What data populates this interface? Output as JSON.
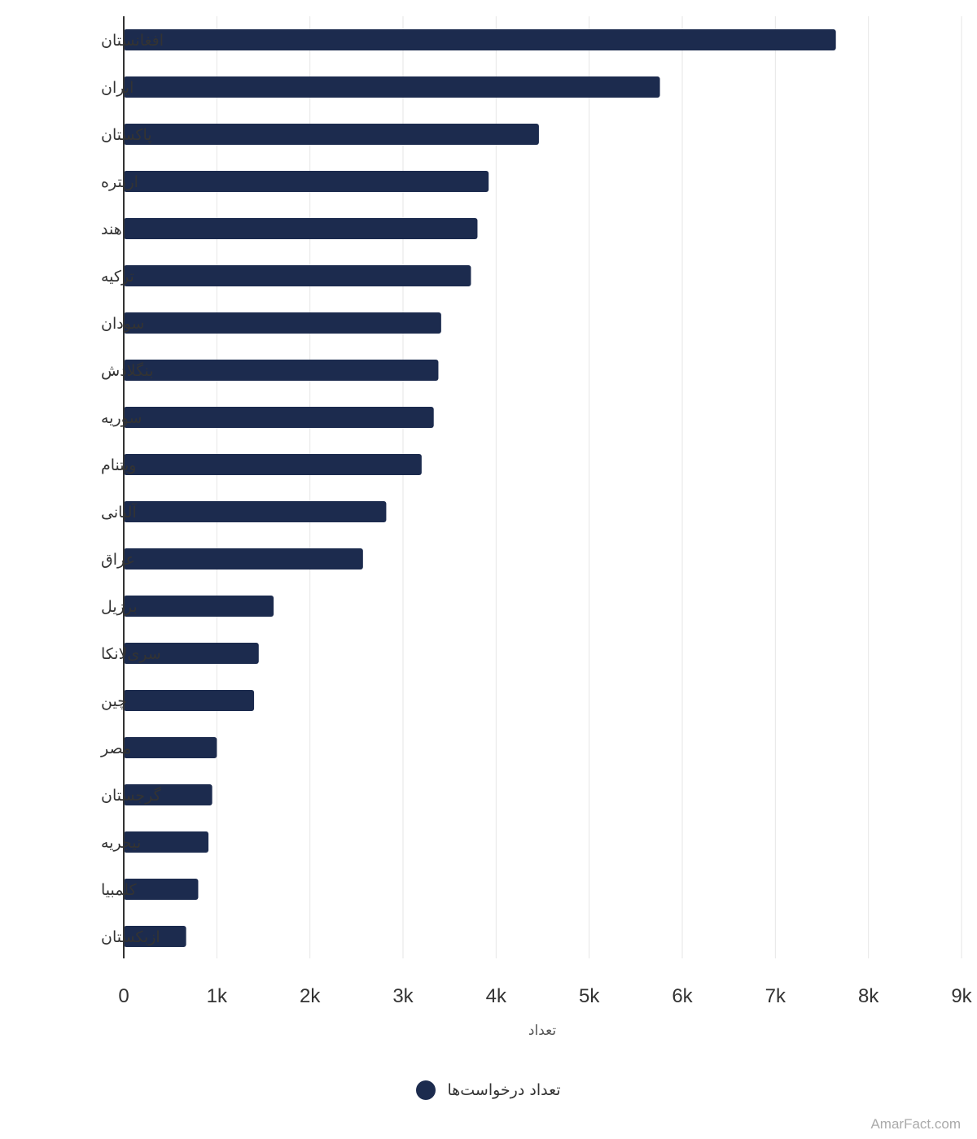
{
  "colors": {
    "bar": "#1c2b4e",
    "grid": "#e6e6e6",
    "axis": "#333333"
  },
  "chart_data": {
    "type": "bar",
    "orientation": "horizontal",
    "categories": [
      "افغانستان",
      "ایران",
      "پاکستان",
      "اریتره",
      "هند",
      "ترکیه",
      "سودان",
      "بنگلادش",
      "سوریه",
      "ویتنام",
      "آلبانی",
      "عراق",
      "برزیل",
      "سری‌لانکا",
      "چین",
      "مصر",
      "گرجستان",
      "نیجریه",
      "کلمبیا",
      "ازبکستان"
    ],
    "series": [
      {
        "name": "تعداد درخواست‌ها",
        "values": [
          7650,
          5760,
          4460,
          3920,
          3800,
          3730,
          3410,
          3380,
          3330,
          3200,
          2820,
          2570,
          1610,
          1450,
          1400,
          1000,
          950,
          910,
          800,
          670
        ]
      }
    ],
    "xlabel": "تعداد",
    "ylabel": "",
    "xlim": [
      0,
      9000
    ],
    "x_ticks": [
      "0",
      "1k",
      "2k",
      "3k",
      "4k",
      "5k",
      "6k",
      "7k",
      "8k",
      "9k"
    ],
    "grid": "vertical",
    "legend": "bottom-center"
  },
  "legend": {
    "label": "تعداد درخواست‌ها"
  },
  "credit": "AmarFact.com"
}
